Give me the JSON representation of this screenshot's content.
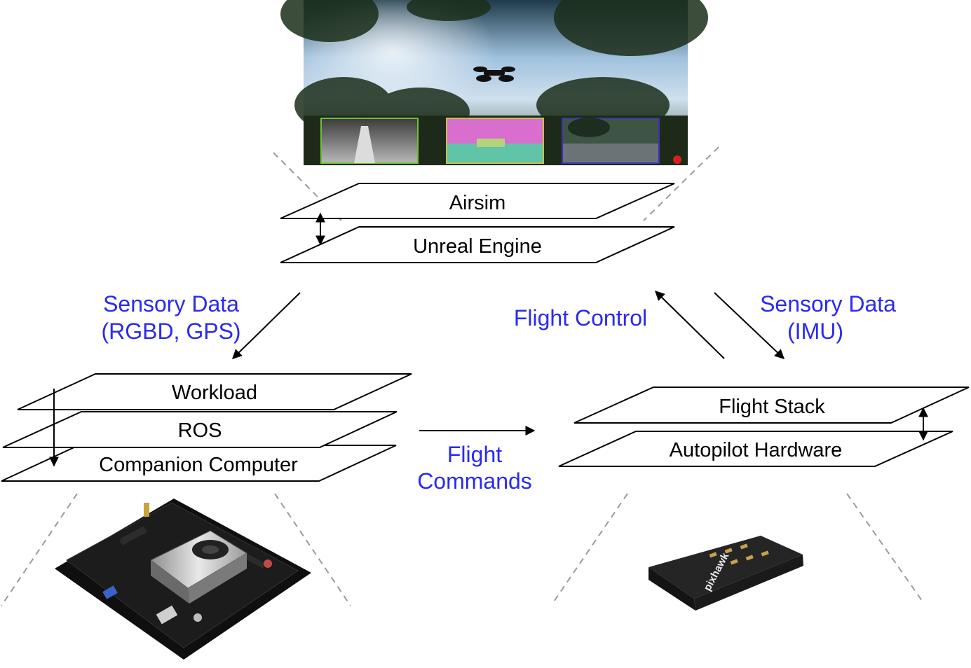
{
  "colors": {
    "annotation_text": "#2a2af0",
    "outline": "#000000",
    "dashed_guide": "#9a9a9a",
    "plane_fill": "#ffffff"
  },
  "simulator": {
    "layers": [
      "Airsim",
      "Unreal Engine"
    ],
    "image": "drone-in-forest-simulation-screenshot",
    "insets": [
      "depth-view-inset",
      "segmentation-view-inset",
      "rgb-camera-inset"
    ]
  },
  "companion": {
    "layers": [
      "Workload",
      "ROS",
      "Companion Computer"
    ],
    "image": "companion-computer-board-photo"
  },
  "flight": {
    "layers": [
      "Flight Stack",
      "Autopilot Hardware"
    ],
    "image": "pixhawk-autopilot-photo",
    "device_text": "pixhawk"
  },
  "annotations": {
    "sensory_left_line1": "Sensory Data",
    "sensory_left_line2": "(RGBD, GPS)",
    "flight_control": "Flight Control",
    "sensory_right_line1": "Sensory Data",
    "sensory_right_line2": "(IMU)",
    "flight_commands_line1": "Flight",
    "flight_commands_line2": "Commands"
  }
}
